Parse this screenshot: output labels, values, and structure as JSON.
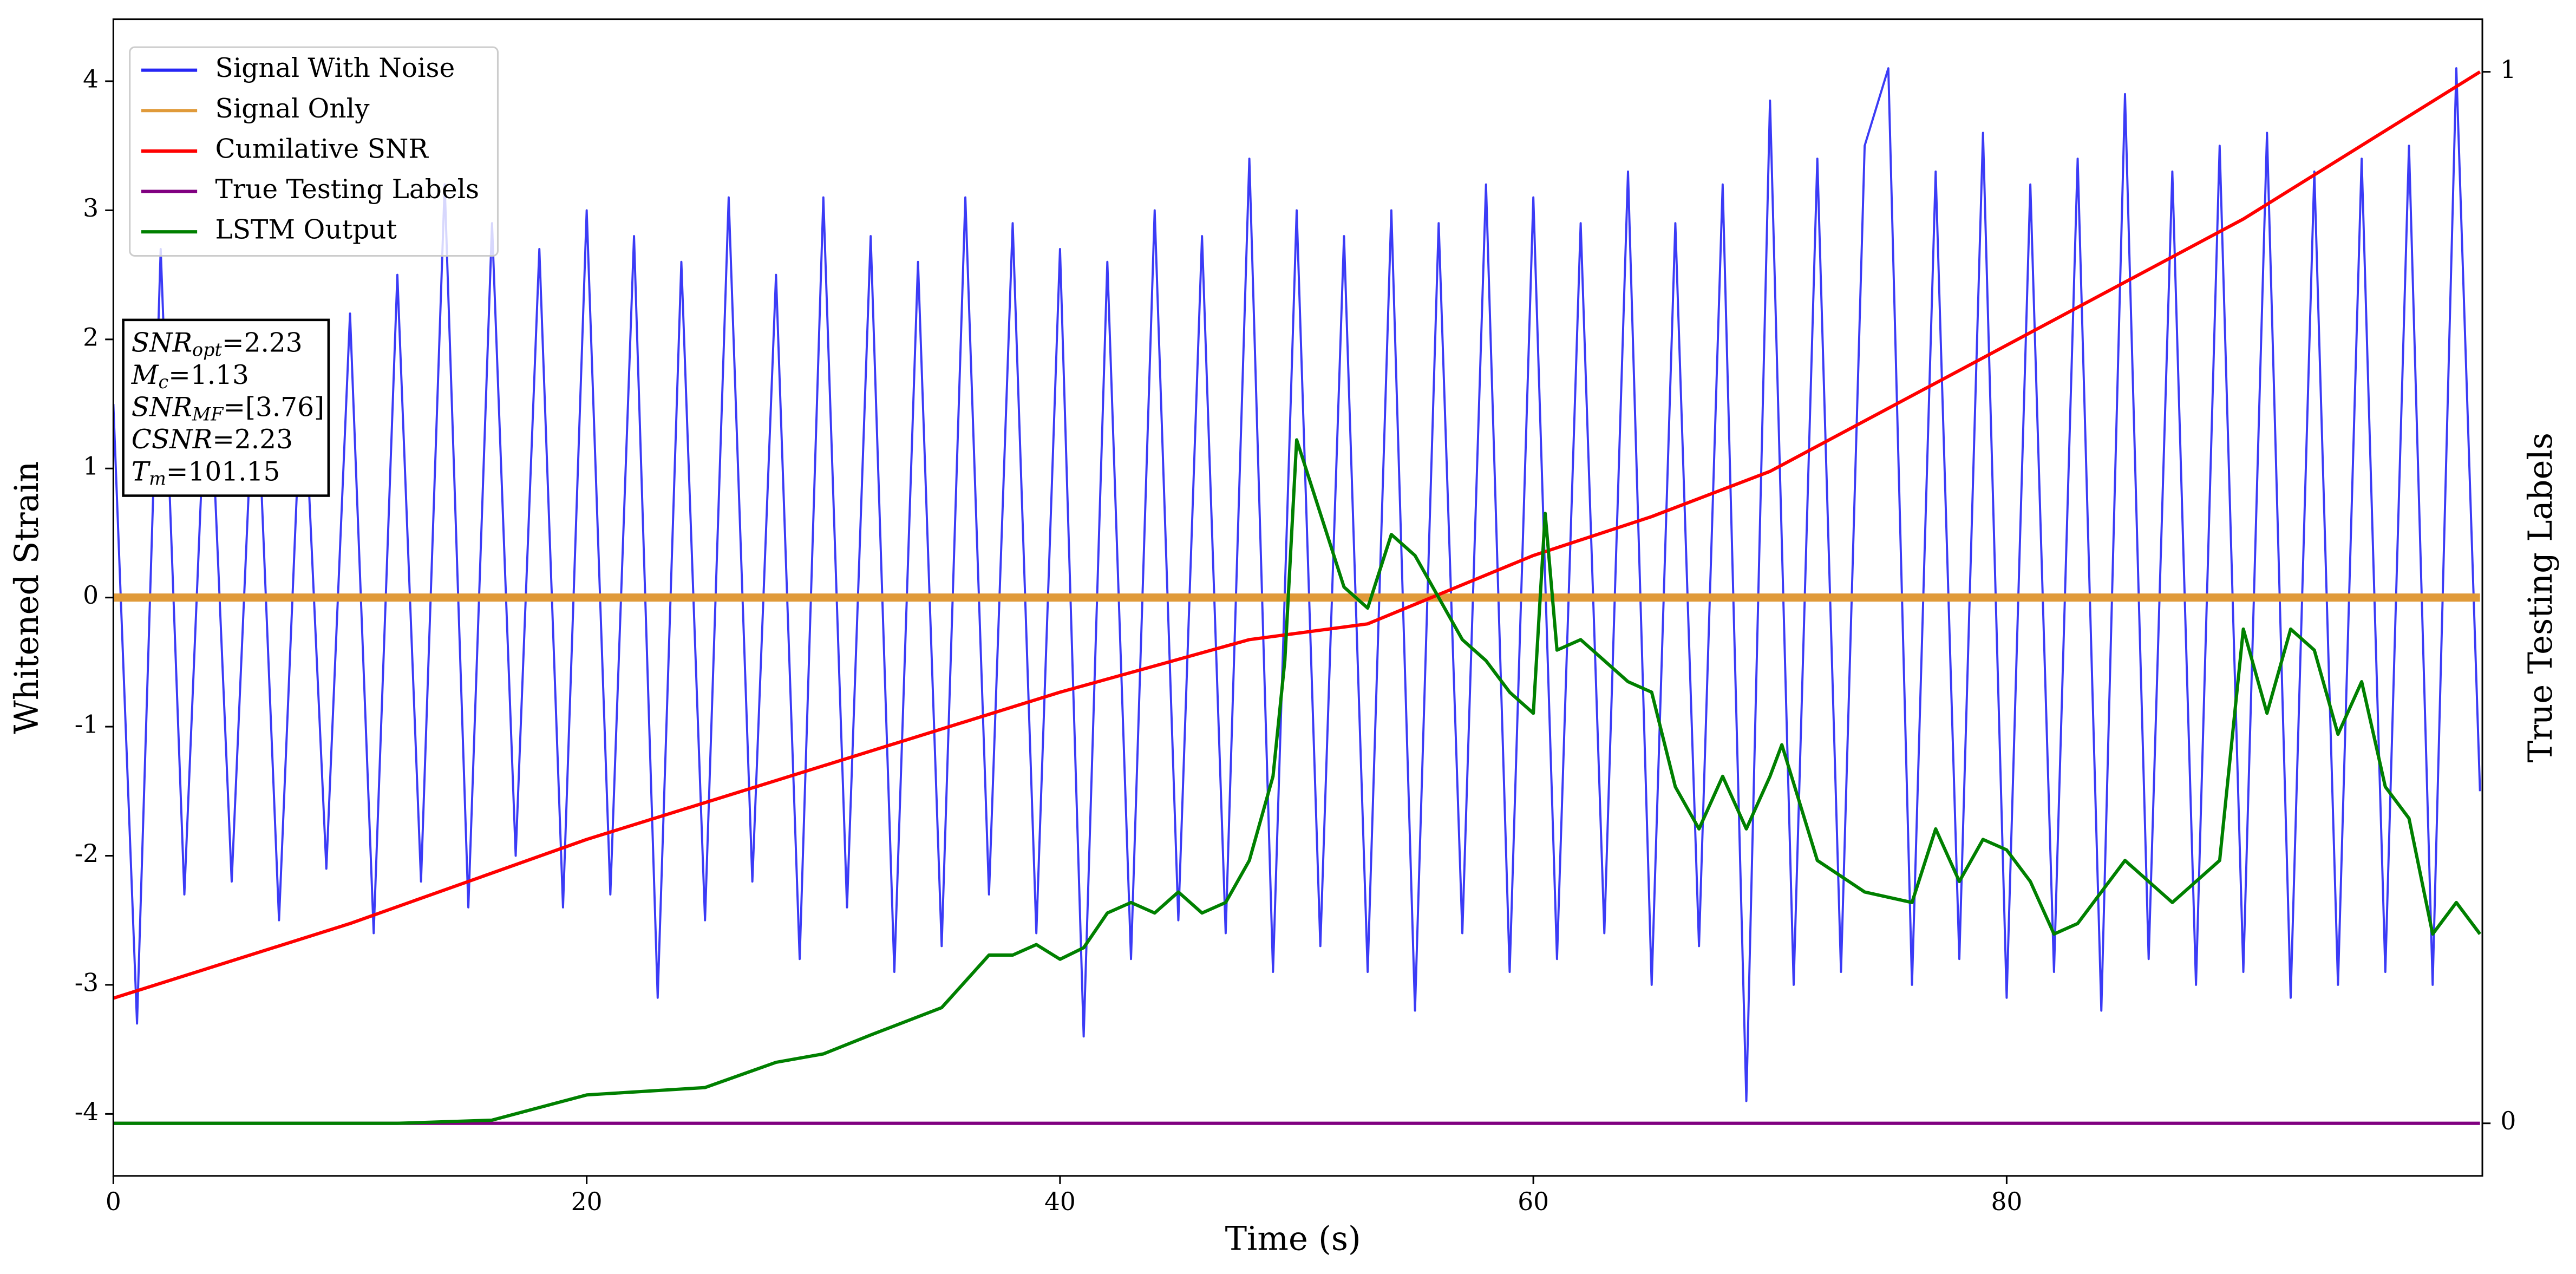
{
  "chart_data": {
    "type": "line",
    "xlabel": "Time (s)",
    "ylabel": "Whitened Strain",
    "y2label": "True Testing Labels",
    "xlim": [
      0,
      100.1
    ],
    "xticks": [
      0,
      20,
      40,
      60,
      80
    ],
    "ylim": [
      -4.48,
      4.48
    ],
    "yticks": [
      -4,
      -3,
      -2,
      -1,
      0,
      1,
      2,
      3,
      4
    ],
    "y2lim": [
      -0.05,
      1.05
    ],
    "y2ticks": [
      0,
      1
    ],
    "legend": "upper left",
    "annotation": [
      {
        "text": "SNR",
        "sub": "opt",
        "value": "=2.23"
      },
      {
        "text": "M",
        "sub": "c",
        "value": "=1.13"
      },
      {
        "text": "SNR",
        "sub": "MF",
        "value": "=[3.76]"
      },
      {
        "text": "CSNR",
        "value": "=2.23"
      },
      {
        "text": "T",
        "sub": "m",
        "value": "=101.15"
      }
    ],
    "series": [
      {
        "name": "Signal With Noise",
        "color": "#2626f5",
        "x": [
          0,
          1,
          2,
          3,
          4,
          5,
          6,
          7,
          8,
          9,
          10,
          11,
          12,
          13,
          14,
          15,
          16,
          17,
          18,
          19,
          20,
          21,
          22,
          23,
          24,
          25,
          26,
          27,
          28,
          29,
          30,
          31,
          32,
          33,
          34,
          35,
          36,
          37,
          38,
          39,
          40,
          41,
          42,
          43,
          44,
          45,
          46,
          47,
          48,
          49,
          50,
          51,
          52,
          53,
          54,
          55,
          56,
          57,
          58,
          59,
          60,
          61,
          62,
          63,
          64,
          65,
          66,
          67,
          68,
          69,
          70,
          71,
          72,
          73,
          74,
          75,
          76,
          77,
          78,
          79,
          80,
          81,
          82,
          83,
          84,
          85,
          86,
          87,
          88,
          89,
          90,
          91,
          92,
          93,
          94,
          95,
          96,
          97,
          98,
          99,
          100
        ],
        "values": [
          1.5,
          -3.3,
          2.7,
          -2.3,
          2.1,
          -2.2,
          2.0,
          -2.5,
          1.9,
          -2.1,
          2.2,
          -2.6,
          2.5,
          -2.2,
          3.2,
          -2.4,
          2.9,
          -2.0,
          2.7,
          -2.4,
          3.0,
          -2.3,
          2.8,
          -3.1,
          2.6,
          -2.5,
          3.1,
          -2.2,
          2.5,
          -2.8,
          3.1,
          -2.4,
          2.8,
          -2.9,
          2.6,
          -2.7,
          3.1,
          -2.3,
          2.9,
          -2.6,
          2.7,
          -3.4,
          2.6,
          -2.8,
          3.0,
          -2.5,
          2.8,
          -2.6,
          3.4,
          -2.9,
          3.0,
          -2.7,
          2.8,
          -2.9,
          3.0,
          -3.2,
          2.9,
          -2.6,
          3.2,
          -2.9,
          3.1,
          -2.8,
          2.9,
          -2.6,
          3.3,
          -3.0,
          2.9,
          -2.7,
          3.2,
          -3.9,
          3.85,
          -3.0,
          3.4,
          -2.9,
          3.5,
          4.1,
          -3.0,
          3.3,
          -2.8,
          3.6,
          -3.1,
          3.2,
          -2.9,
          3.4,
          -3.2,
          3.9,
          -2.8,
          3.3,
          -3.0,
          3.5,
          -2.9,
          3.6,
          -3.1,
          3.3,
          -3.0,
          3.4,
          -2.9,
          3.5,
          -3.0,
          4.1,
          -1.5
        ]
      },
      {
        "name": "Signal Only",
        "color": "#e09a3a",
        "x": [
          0,
          100
        ],
        "values": [
          0,
          0
        ]
      },
      {
        "name": "Cumilative SNR",
        "color": "#ff0000",
        "axis": "y2",
        "x": [
          0,
          10,
          20,
          30,
          40,
          48,
          53,
          60,
          65,
          70,
          80,
          90,
          100
        ],
        "values": [
          0.119,
          0.19,
          0.27,
          0.34,
          0.41,
          0.46,
          0.475,
          0.54,
          0.577,
          0.62,
          0.74,
          0.86,
          1.0
        ]
      },
      {
        "name": "True Testing Labels",
        "color": "#800080",
        "axis": "y2",
        "x": [
          0,
          100
        ],
        "values": [
          0,
          0
        ]
      },
      {
        "name": "LSTM Output",
        "color": "#008000",
        "axis": "y2",
        "x": [
          0,
          12,
          16,
          20,
          25,
          28,
          30,
          32,
          35,
          37,
          38,
          39,
          40,
          41,
          42,
          43,
          44,
          45,
          46,
          47,
          48,
          49,
          49.5,
          50,
          51,
          52,
          53,
          54,
          55,
          56,
          57,
          58,
          59,
          60,
          60.5,
          61,
          62,
          63,
          64,
          65,
          66,
          67,
          68,
          69,
          70,
          70.5,
          72,
          74,
          76,
          77,
          78,
          79,
          80,
          81,
          82,
          83,
          84,
          85,
          86,
          87,
          88,
          89,
          90,
          91,
          92,
          93,
          94,
          95,
          96,
          97,
          98,
          99,
          100
        ],
        "values": [
          0,
          0,
          0.003,
          0.027,
          0.034,
          0.058,
          0.066,
          0.084,
          0.11,
          0.16,
          0.16,
          0.17,
          0.156,
          0.167,
          0.2,
          0.21,
          0.2,
          0.22,
          0.2,
          0.21,
          0.25,
          0.33,
          0.44,
          0.65,
          0.58,
          0.51,
          0.49,
          0.56,
          0.54,
          0.5,
          0.46,
          0.44,
          0.41,
          0.39,
          0.58,
          0.45,
          0.46,
          0.44,
          0.42,
          0.41,
          0.32,
          0.28,
          0.33,
          0.28,
          0.33,
          0.36,
          0.25,
          0.22,
          0.21,
          0.28,
          0.23,
          0.27,
          0.26,
          0.23,
          0.18,
          0.19,
          0.22,
          0.25,
          0.23,
          0.21,
          0.23,
          0.25,
          0.47,
          0.39,
          0.47,
          0.45,
          0.37,
          0.42,
          0.32,
          0.29,
          0.18,
          0.21,
          0.18
        ]
      }
    ]
  }
}
